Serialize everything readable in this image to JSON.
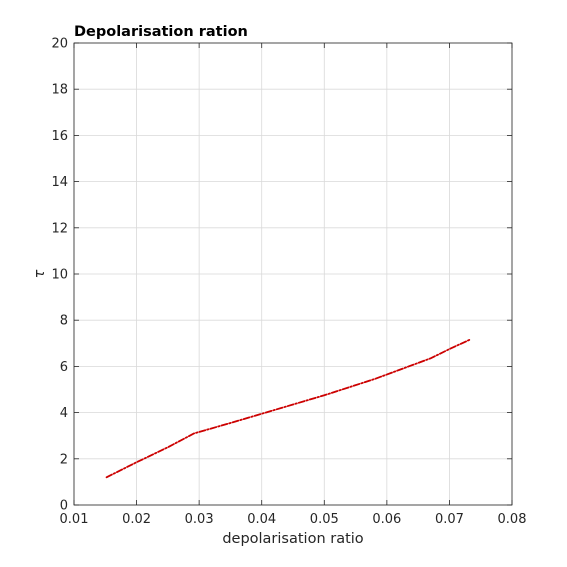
{
  "chart_data": {
    "type": "line",
    "title": "Depolarisation ration",
    "xlabel": "depolarisation ratio",
    "ylabel": "τ",
    "xlim": [
      0.01,
      0.08
    ],
    "ylim": [
      0,
      20
    ],
    "xticks": [
      0.01,
      0.02,
      0.03,
      0.04,
      0.05,
      0.06,
      0.07,
      0.08
    ],
    "xtick_labels": [
      "0.01",
      "0.02",
      "0.03",
      "0.04",
      "0.05",
      "0.06",
      "0.07",
      "0.08"
    ],
    "yticks": [
      0,
      2,
      4,
      6,
      8,
      10,
      12,
      14,
      16,
      18,
      20
    ],
    "ytick_labels": [
      "0",
      "2",
      "4",
      "6",
      "8",
      "10",
      "12",
      "14",
      "16",
      "18",
      "20"
    ],
    "grid": true,
    "legend": "none",
    "series": [
      {
        "color": "#cc0000",
        "line_style": "dash-dot",
        "x": [
          0.0152,
          0.02,
          0.025,
          0.0292,
          0.035,
          0.04,
          0.045,
          0.05,
          0.054,
          0.058,
          0.062,
          0.067,
          0.07,
          0.0732
        ],
        "y": [
          1.2,
          1.85,
          2.5,
          3.1,
          3.55,
          3.95,
          4.35,
          4.75,
          5.1,
          5.45,
          5.85,
          6.35,
          6.75,
          7.15
        ]
      }
    ]
  }
}
